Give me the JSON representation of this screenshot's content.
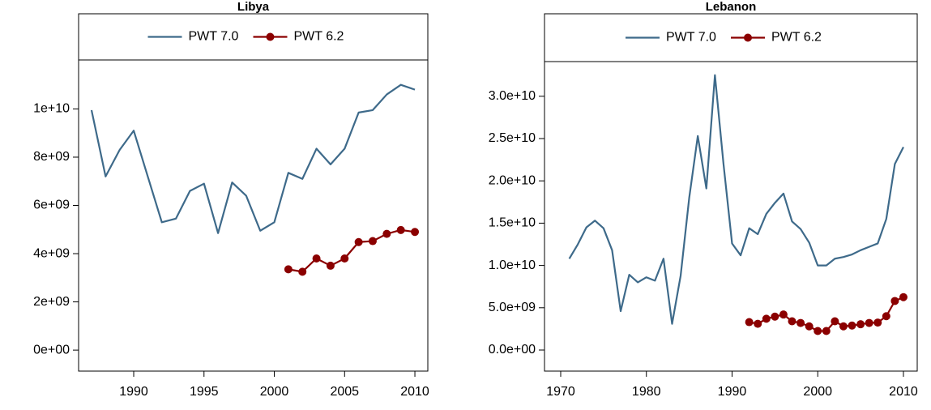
{
  "chart_data": [
    {
      "type": "line",
      "title": "Libya",
      "x": [
        1987,
        1988,
        1989,
        1990,
        1991,
        1992,
        1993,
        1994,
        1995,
        1996,
        1997,
        1998,
        1999,
        2000,
        2001,
        2002,
        2003,
        2004,
        2005,
        2006,
        2007,
        2008,
        2009,
        2010
      ],
      "series": [
        {
          "name": "PWT 7.0",
          "color": "#3e6a8a",
          "markers": false,
          "values": [
            9950000000,
            7200000000,
            8300000000,
            9100000000,
            7200000000,
            5300000000,
            5450000000,
            6600000000,
            6900000000,
            4850000000,
            6950000000,
            6400000000,
            4950000000,
            5300000000,
            7350000000,
            7100000000,
            8350000000,
            7700000000,
            8350000000,
            9850000000,
            9950000000,
            10600000000,
            11000000000,
            10800000000
          ]
        },
        {
          "name": "PWT 6.2",
          "color": "#8b0000",
          "markers": true,
          "values": [
            null,
            null,
            null,
            null,
            null,
            null,
            null,
            null,
            null,
            null,
            null,
            null,
            null,
            null,
            3350000000,
            3250000000,
            3800000000,
            3500000000,
            3800000000,
            4480000000,
            4520000000,
            4820000000,
            4980000000,
            4900000000
          ]
        }
      ],
      "xlim": [
        1986.08,
        2010.92
      ],
      "xticks": [
        1990,
        1995,
        2000,
        2005,
        2010
      ],
      "ylim": [
        -870000000,
        12030000000
      ],
      "yticks": [
        {
          "value": 0,
          "label": "0e+00"
        },
        {
          "value": 2000000000,
          "label": "2e+09"
        },
        {
          "value": 4000000000,
          "label": "4e+09"
        },
        {
          "value": 6000000000,
          "label": "6e+09"
        },
        {
          "value": 8000000000,
          "label": "8e+09"
        },
        {
          "value": 10000000000,
          "label": "1e+10"
        }
      ],
      "legend": "top",
      "grid": false
    },
    {
      "type": "line",
      "title": "Lebanon",
      "x": [
        1971,
        1972,
        1973,
        1974,
        1975,
        1976,
        1977,
        1978,
        1979,
        1980,
        1981,
        1982,
        1983,
        1984,
        1985,
        1986,
        1987,
        1988,
        1989,
        1990,
        1991,
        1992,
        1993,
        1994,
        1995,
        1996,
        1997,
        1998,
        1999,
        2000,
        2001,
        2002,
        2003,
        2004,
        2005,
        2006,
        2007,
        2008,
        2009,
        2010
      ],
      "series": [
        {
          "name": "PWT 7.0",
          "color": "#3e6a8a",
          "markers": false,
          "values": [
            10800000000,
            12500000000,
            14500000000,
            15300000000,
            14400000000,
            11800000000,
            4600000000,
            8900000000,
            8000000000,
            8600000000,
            8200000000,
            10800000000,
            3100000000,
            8800000000,
            18000000000,
            25300000000,
            19100000000,
            32500000000,
            22000000000,
            12600000000,
            11200000000,
            14400000000,
            13700000000,
            16100000000,
            17400000000,
            18500000000,
            15200000000,
            14300000000,
            12700000000,
            10000000000,
            10000000000,
            10800000000,
            11000000000,
            11300000000,
            11800000000,
            12200000000,
            12600000000,
            15500000000,
            22000000000,
            24000000000
          ]
        },
        {
          "name": "PWT 6.2",
          "color": "#8b0000",
          "markers": true,
          "values": [
            null,
            null,
            null,
            null,
            null,
            null,
            null,
            null,
            null,
            null,
            null,
            null,
            null,
            null,
            null,
            null,
            null,
            null,
            null,
            null,
            null,
            3300000000,
            3100000000,
            3700000000,
            3950000000,
            4200000000,
            3400000000,
            3200000000,
            2800000000,
            2250000000,
            2250000000,
            3400000000,
            2800000000,
            2900000000,
            3050000000,
            3200000000,
            3250000000,
            4000000000,
            5800000000,
            6250000000
          ]
        }
      ],
      "xlim": [
        1968.11,
        2011.61
      ],
      "xticks": [
        1970,
        1980,
        1990,
        2000,
        2010
      ],
      "ylim": [
        -2490000000,
        34100000000
      ],
      "yticks": [
        {
          "value": 0,
          "label": "0.0e+00"
        },
        {
          "value": 5000000000,
          "label": "5.0e+09"
        },
        {
          "value": 10000000000,
          "label": "1.0e+10"
        },
        {
          "value": 15000000000,
          "label": "1.5e+10"
        },
        {
          "value": 20000000000,
          "label": "2.0e+10"
        },
        {
          "value": 25000000000,
          "label": "2.5e+10"
        },
        {
          "value": 30000000000,
          "label": "3.0e+10"
        }
      ],
      "legend": "top",
      "grid": false
    }
  ]
}
